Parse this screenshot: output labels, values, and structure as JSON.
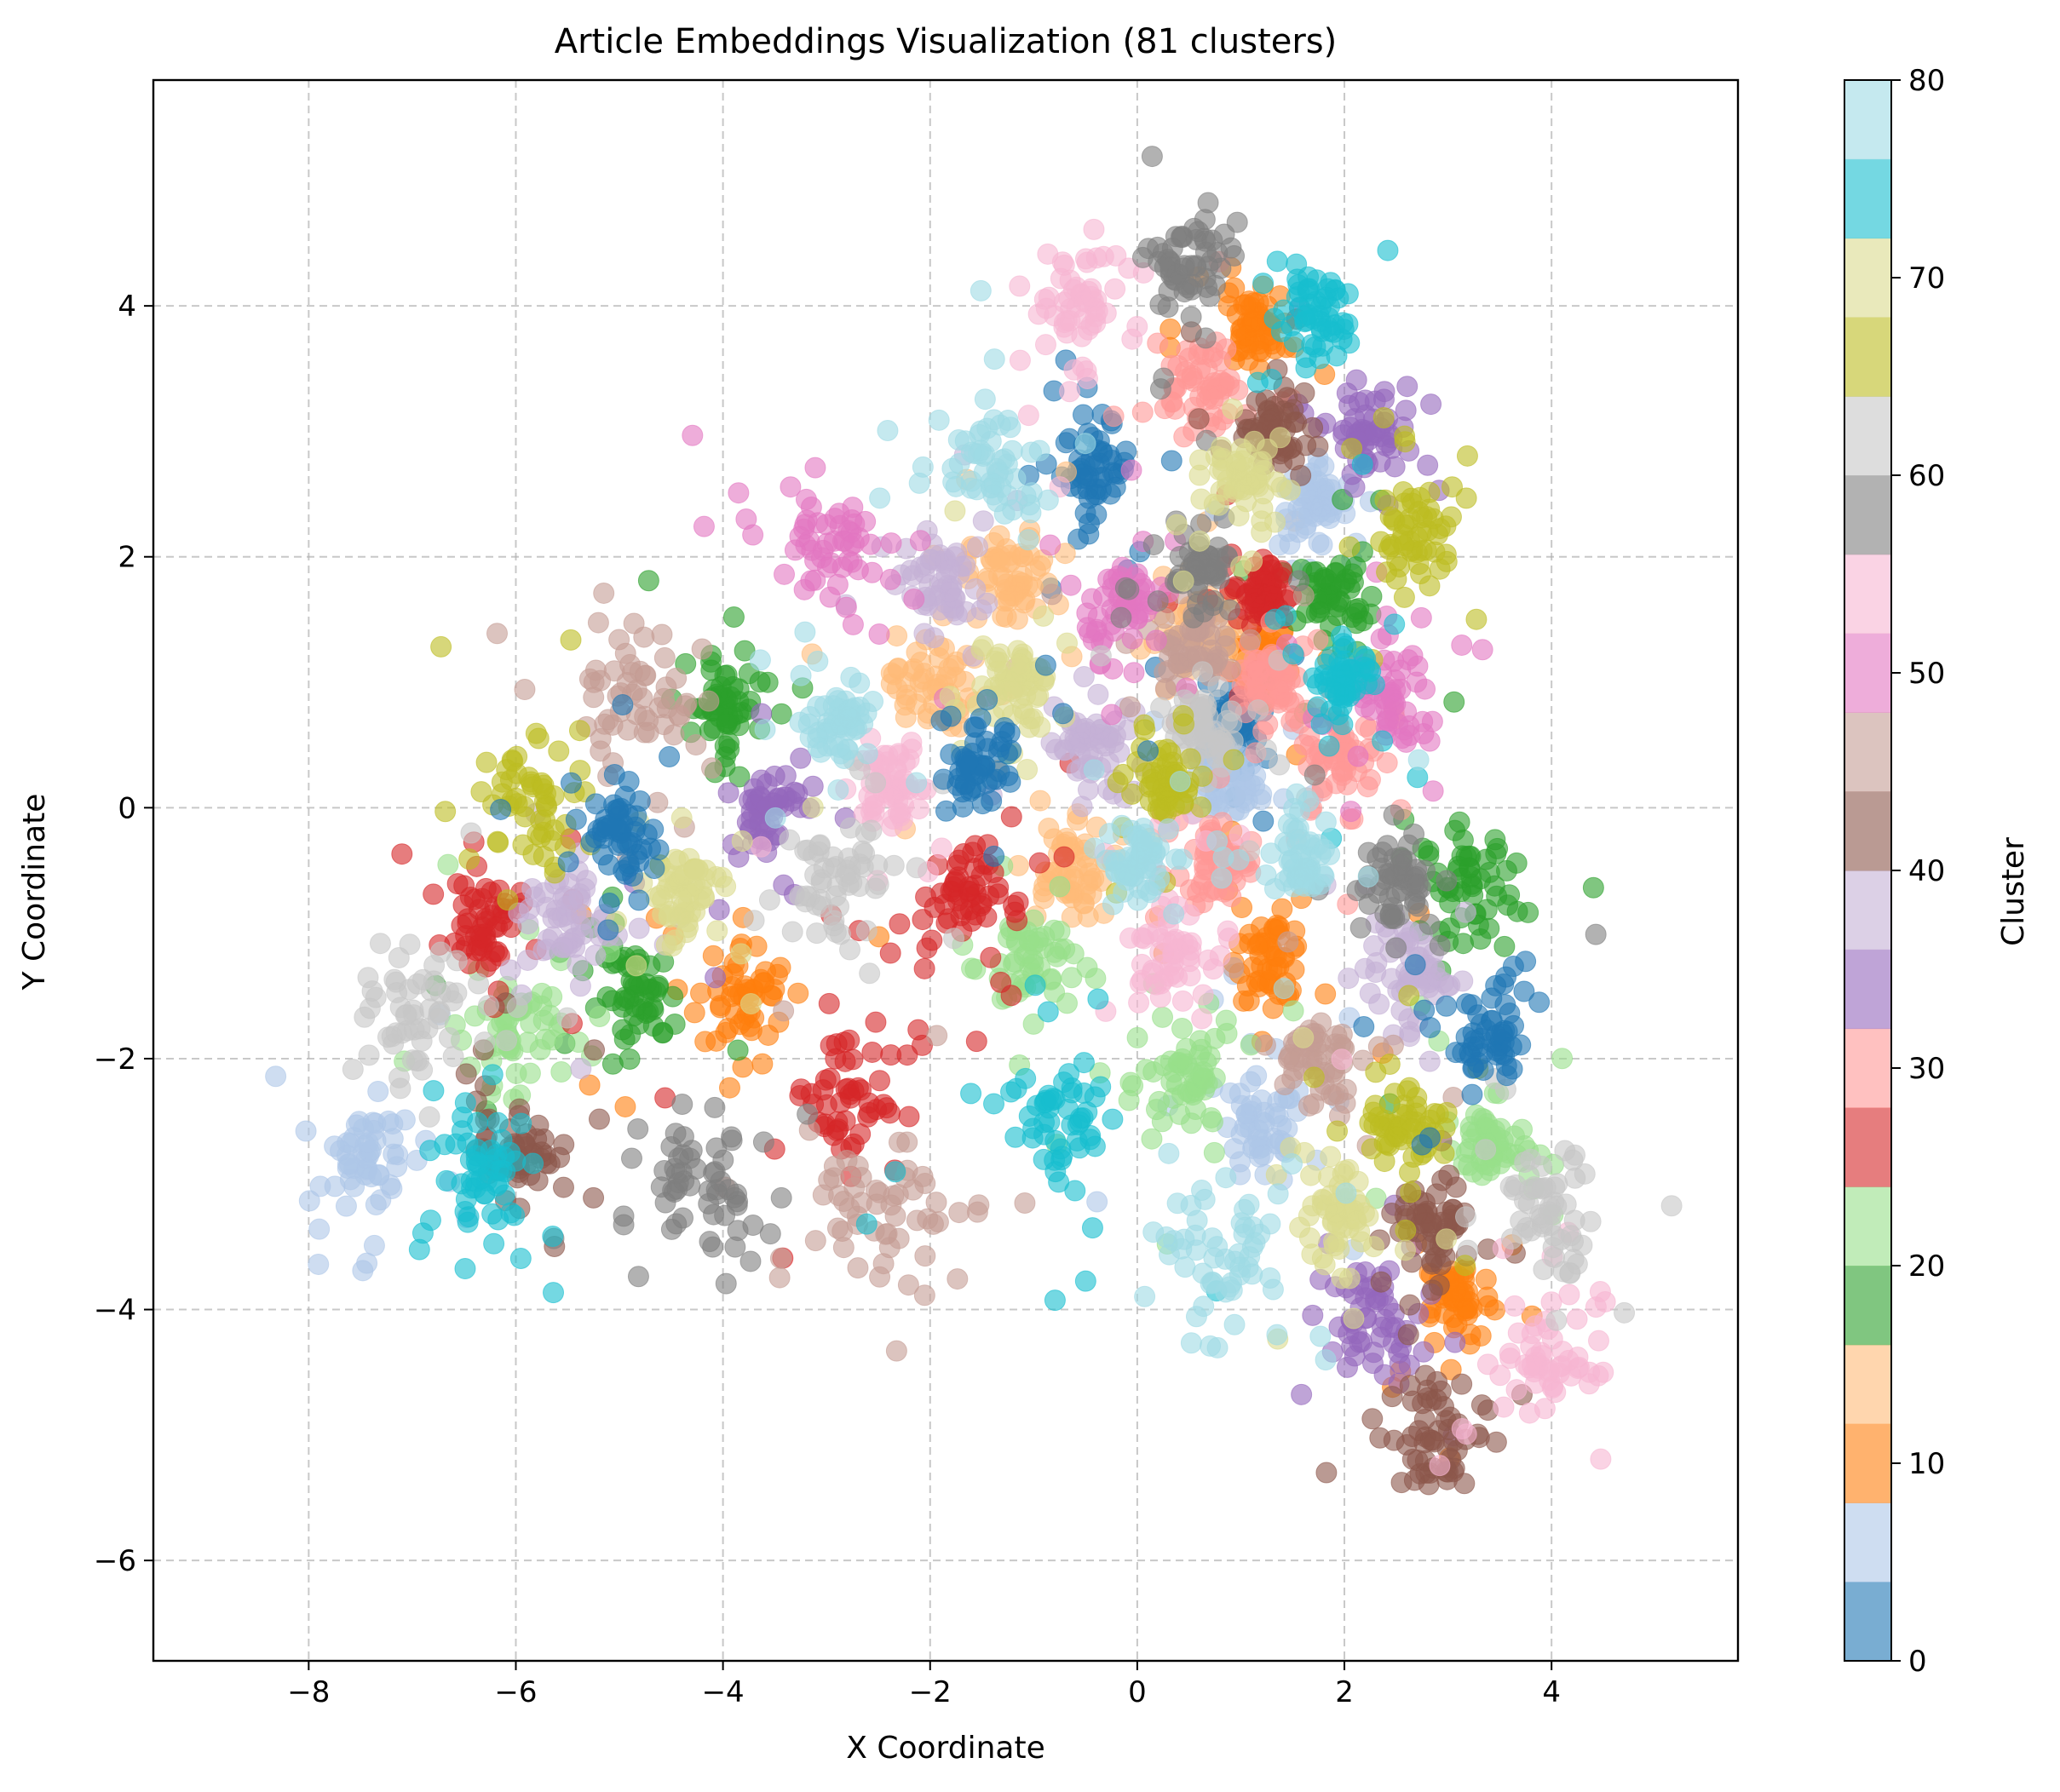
{
  "chart_data": {
    "type": "scatter",
    "title": "Article Embeddings Visualization (81 clusters)",
    "xlabel": "X Coordinate",
    "ylabel": "Y Coordinate",
    "xlim": [
      -9.5,
      5.8
    ],
    "ylim": [
      -6.8,
      5.8
    ],
    "xticks": [
      -8,
      -6,
      -4,
      -2,
      0,
      2,
      4
    ],
    "yticks": [
      -6,
      -4,
      -2,
      0,
      2,
      4
    ],
    "tick_labels_x": [
      "−8",
      "−6",
      "−4",
      "−2",
      "0",
      "2",
      "4"
    ],
    "tick_labels_y": [
      "−6",
      "−4",
      "−2",
      "0",
      "2",
      "4"
    ],
    "grid": true,
    "colorbar": {
      "label": "Cluster",
      "range": [
        0,
        80
      ],
      "ticks": [
        0,
        10,
        20,
        30,
        40,
        50,
        60,
        70,
        80
      ],
      "tick_labels": [
        "0",
        "10",
        "20",
        "30",
        "40",
        "50",
        "60",
        "70",
        "80"
      ],
      "colormap_colors": [
        "#1f77b4",
        "#aec7e8",
        "#ff7f0e",
        "#ffbb78",
        "#2ca02c",
        "#98df8a",
        "#d62728",
        "#ff9896",
        "#9467bd",
        "#c5b0d5",
        "#8c564b",
        "#c49c94",
        "#e377c2",
        "#f7b6d2",
        "#7f7f7f",
        "#c7c7c7",
        "#bcbd22",
        "#dbdb8d",
        "#17becf",
        "#9edae5"
      ]
    },
    "clusters": [
      {
        "cluster": 0,
        "color_index": 0,
        "x": 0.95,
        "y": 0.65,
        "spread": 0.25
      },
      {
        "cluster": 1,
        "color_index": 1,
        "x": 0.85,
        "y": 0.2,
        "spread": 0.3
      },
      {
        "cluster": 2,
        "color_index": 2,
        "x": 1.2,
        "y": 1.2,
        "spread": 0.25
      },
      {
        "cluster": 3,
        "color_index": 3,
        "x": 0.6,
        "y": 1.5,
        "spread": 0.3
      },
      {
        "cluster": 5,
        "color_index": 0,
        "x": -0.4,
        "y": 2.7,
        "spread": 0.3
      },
      {
        "cluster": 7,
        "color_index": 1,
        "x": 1.7,
        "y": 2.4,
        "spread": 0.3
      },
      {
        "cluster": 8,
        "color_index": 1,
        "x": 1.2,
        "y": -2.6,
        "spread": 0.4
      },
      {
        "cluster": 9,
        "color_index": 1,
        "x": -7.4,
        "y": -2.8,
        "spread": 0.4
      },
      {
        "cluster": 11,
        "color_index": 2,
        "x": 1.3,
        "y": -1.2,
        "spread": 0.3
      },
      {
        "cluster": 12,
        "color_index": 2,
        "x": 1.1,
        "y": 3.8,
        "spread": 0.25
      },
      {
        "cluster": 13,
        "color_index": 2,
        "x": 3.1,
        "y": -3.9,
        "spread": 0.3
      },
      {
        "cluster": 14,
        "color_index": 2,
        "x": -3.8,
        "y": -1.5,
        "spread": 0.4
      },
      {
        "cluster": 15,
        "color_index": 3,
        "x": -0.7,
        "y": -0.5,
        "spread": 0.35
      },
      {
        "cluster": 16,
        "color_index": 3,
        "x": -2.0,
        "y": 1.0,
        "spread": 0.35
      },
      {
        "cluster": 17,
        "color_index": 3,
        "x": -1.2,
        "y": 1.8,
        "spread": 0.35
      },
      {
        "cluster": 18,
        "color_index": 4,
        "x": 1.9,
        "y": 1.7,
        "spread": 0.3
      },
      {
        "cluster": 19,
        "color_index": 4,
        "x": -4.0,
        "y": 0.8,
        "spread": 0.3
      },
      {
        "cluster": 20,
        "color_index": 4,
        "x": -4.8,
        "y": -1.5,
        "spread": 0.35
      },
      {
        "cluster": 21,
        "color_index": 4,
        "x": 3.2,
        "y": -0.6,
        "spread": 0.4
      },
      {
        "cluster": 22,
        "color_index": 5,
        "x": -6.0,
        "y": -1.8,
        "spread": 0.4
      },
      {
        "cluster": 23,
        "color_index": 5,
        "x": -1.0,
        "y": -1.2,
        "spread": 0.4
      },
      {
        "cluster": 24,
        "color_index": 5,
        "x": 0.5,
        "y": -2.2,
        "spread": 0.4
      },
      {
        "cluster": 25,
        "color_index": 5,
        "x": 3.4,
        "y": -2.7,
        "spread": 0.3
      },
      {
        "cluster": 26,
        "color_index": 6,
        "x": -6.3,
        "y": -0.9,
        "spread": 0.3
      },
      {
        "cluster": 27,
        "color_index": 6,
        "x": -2.8,
        "y": -2.3,
        "spread": 0.5
      },
      {
        "cluster": 28,
        "color_index": 6,
        "x": -1.7,
        "y": -0.7,
        "spread": 0.35
      },
      {
        "cluster": 29,
        "color_index": 6,
        "x": 1.2,
        "y": 1.7,
        "spread": 0.25
      },
      {
        "cluster": 30,
        "color_index": 7,
        "x": 0.6,
        "y": 3.4,
        "spread": 0.3
      },
      {
        "cluster": 31,
        "color_index": 7,
        "x": 1.3,
        "y": 1.0,
        "spread": 0.3
      },
      {
        "cluster": 32,
        "color_index": 7,
        "x": 2.0,
        "y": 0.4,
        "spread": 0.35
      },
      {
        "cluster": 33,
        "color_index": 7,
        "x": 0.8,
        "y": -0.4,
        "spread": 0.3
      },
      {
        "cluster": 34,
        "color_index": 8,
        "x": 2.2,
        "y": 3.0,
        "spread": 0.3
      },
      {
        "cluster": 35,
        "color_index": 8,
        "x": -3.6,
        "y": 0.0,
        "spread": 0.3
      },
      {
        "cluster": 36,
        "color_index": 8,
        "x": 2.3,
        "y": -4.1,
        "spread": 0.4
      },
      {
        "cluster": 37,
        "color_index": 9,
        "x": -5.5,
        "y": -0.9,
        "spread": 0.35
      },
      {
        "cluster": 38,
        "color_index": 9,
        "x": 2.6,
        "y": -1.3,
        "spread": 0.35
      },
      {
        "cluster": 39,
        "color_index": 9,
        "x": -0.5,
        "y": 0.5,
        "spread": 0.3
      },
      {
        "cluster": 40,
        "color_index": 9,
        "x": -1.9,
        "y": 1.8,
        "spread": 0.35
      },
      {
        "cluster": 41,
        "color_index": 10,
        "x": 1.3,
        "y": 3.0,
        "spread": 0.25
      },
      {
        "cluster": 42,
        "color_index": 10,
        "x": -6.0,
        "y": -2.7,
        "spread": 0.35
      },
      {
        "cluster": 43,
        "color_index": 10,
        "x": 2.9,
        "y": -3.3,
        "spread": 0.3
      },
      {
        "cluster": 44,
        "color_index": 10,
        "x": 2.9,
        "y": -5.0,
        "spread": 0.4
      },
      {
        "cluster": 45,
        "color_index": 11,
        "x": 0.5,
        "y": 1.3,
        "spread": 0.3
      },
      {
        "cluster": 46,
        "color_index": 11,
        "x": 1.7,
        "y": -2.0,
        "spread": 0.35
      },
      {
        "cluster": 47,
        "color_index": 11,
        "x": -4.8,
        "y": 0.9,
        "spread": 0.5
      },
      {
        "cluster": 48,
        "color_index": 11,
        "x": -2.5,
        "y": -3.3,
        "spread": 0.6
      },
      {
        "cluster": 49,
        "color_index": 12,
        "x": -0.1,
        "y": 1.6,
        "spread": 0.35
      },
      {
        "cluster": 50,
        "color_index": 12,
        "x": 2.5,
        "y": 0.8,
        "spread": 0.4
      },
      {
        "cluster": 51,
        "color_index": 12,
        "x": -3.0,
        "y": 2.0,
        "spread": 0.5
      },
      {
        "cluster": 52,
        "color_index": 13,
        "x": -2.4,
        "y": 0.2,
        "spread": 0.3
      },
      {
        "cluster": 53,
        "color_index": 13,
        "x": 0.3,
        "y": -1.1,
        "spread": 0.35
      },
      {
        "cluster": 54,
        "color_index": 13,
        "x": 4.0,
        "y": -4.4,
        "spread": 0.4
      },
      {
        "cluster": 55,
        "color_index": 13,
        "x": -0.6,
        "y": 4.0,
        "spread": 0.4
      },
      {
        "cluster": 56,
        "color_index": 14,
        "x": 0.5,
        "y": 4.3,
        "spread": 0.35
      },
      {
        "cluster": 57,
        "color_index": 14,
        "x": 2.5,
        "y": -0.6,
        "spread": 0.3
      },
      {
        "cluster": 58,
        "color_index": 14,
        "x": -4.2,
        "y": -3.0,
        "spread": 0.5
      },
      {
        "cluster": 59,
        "color_index": 14,
        "x": 0.6,
        "y": 1.9,
        "spread": 0.25
      },
      {
        "cluster": 60,
        "color_index": 15,
        "x": 0.6,
        "y": 0.6,
        "spread": 0.3
      },
      {
        "cluster": 61,
        "color_index": 15,
        "x": -2.9,
        "y": -0.6,
        "spread": 0.4
      },
      {
        "cluster": 62,
        "color_index": 15,
        "x": -6.9,
        "y": -1.7,
        "spread": 0.45
      },
      {
        "cluster": 63,
        "color_index": 15,
        "x": 4.0,
        "y": -3.2,
        "spread": 0.4
      },
      {
        "cluster": 64,
        "color_index": 16,
        "x": 0.3,
        "y": 0.2,
        "spread": 0.25
      },
      {
        "cluster": 65,
        "color_index": 16,
        "x": 2.7,
        "y": 2.2,
        "spread": 0.35
      },
      {
        "cluster": 66,
        "color_index": 16,
        "x": -5.8,
        "y": 0.1,
        "spread": 0.45
      },
      {
        "cluster": 67,
        "color_index": 16,
        "x": 2.6,
        "y": -2.5,
        "spread": 0.35
      },
      {
        "cluster": 68,
        "color_index": 17,
        "x": 1.0,
        "y": 2.6,
        "spread": 0.3
      },
      {
        "cluster": 69,
        "color_index": 17,
        "x": -1.2,
        "y": 1.0,
        "spread": 0.3
      },
      {
        "cluster": 70,
        "color_index": 17,
        "x": -4.4,
        "y": -0.7,
        "spread": 0.35
      },
      {
        "cluster": 71,
        "color_index": 17,
        "x": 1.9,
        "y": -3.3,
        "spread": 0.35
      },
      {
        "cluster": 72,
        "color_index": 18,
        "x": 1.7,
        "y": 3.9,
        "spread": 0.3
      },
      {
        "cluster": 73,
        "color_index": 18,
        "x": 2.0,
        "y": 1.0,
        "spread": 0.25
      },
      {
        "cluster": 74,
        "color_index": 18,
        "x": -6.3,
        "y": -2.9,
        "spread": 0.4
      },
      {
        "cluster": 75,
        "color_index": 18,
        "x": -0.7,
        "y": -2.5,
        "spread": 0.5
      },
      {
        "cluster": 76,
        "color_index": 19,
        "x": -2.9,
        "y": 0.7,
        "spread": 0.3
      },
      {
        "cluster": 77,
        "color_index": 19,
        "x": 1.6,
        "y": -0.4,
        "spread": 0.3
      },
      {
        "cluster": 78,
        "color_index": 19,
        "x": -1.4,
        "y": 2.7,
        "spread": 0.45
      },
      {
        "cluster": 79,
        "color_index": 19,
        "x": 0.9,
        "y": -3.6,
        "spread": 0.45
      },
      {
        "cluster": 80,
        "color_index": 19,
        "x": 0.0,
        "y": -0.4,
        "spread": 0.25
      },
      {
        "cluster": 4,
        "color_index": 0,
        "x": -1.5,
        "y": 0.3,
        "spread": 0.3
      },
      {
        "cluster": 6,
        "color_index": 0,
        "x": -5.0,
        "y": -0.2,
        "spread": 0.3
      },
      {
        "cluster": 10,
        "color_index": 0,
        "x": 3.4,
        "y": -1.9,
        "spread": 0.35
      }
    ]
  }
}
